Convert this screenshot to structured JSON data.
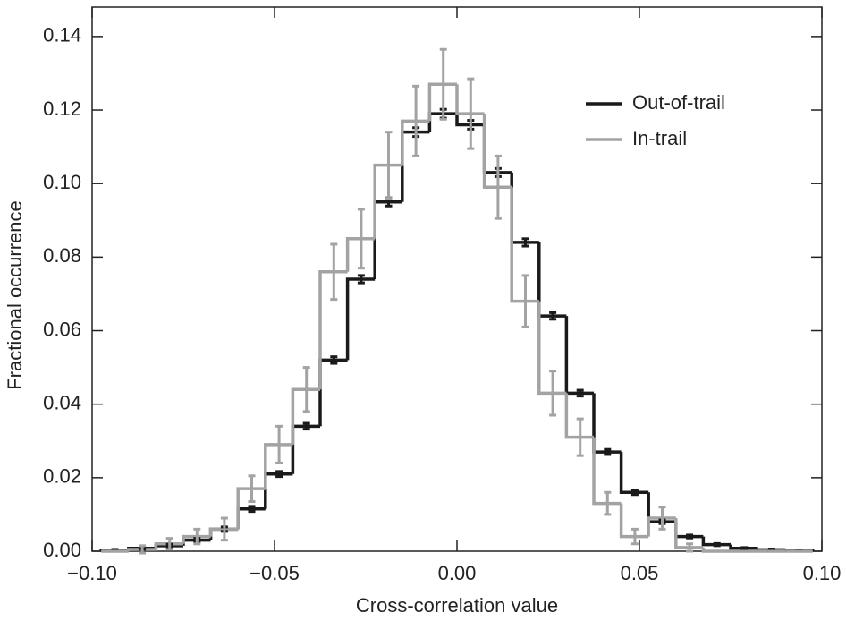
{
  "chart_data": {
    "type": "histogram-step",
    "x_label": "Cross-correlation value",
    "y_label": "Fractional occurrence",
    "bins": [
      -0.0975,
      -0.09,
      -0.0825,
      -0.075,
      -0.0675,
      -0.06,
      -0.0525,
      -0.045,
      -0.0375,
      -0.03,
      -0.0225,
      -0.015,
      -0.0075,
      0,
      0.0075,
      0.015,
      0.0225,
      0.03,
      0.0375,
      0.045,
      0.0525,
      0.06,
      0.0675,
      0.075,
      0.0825,
      0.09,
      0.0975
    ],
    "series": [
      {
        "name": "Out-of-trail",
        "color": "#1a1a1a",
        "values": [
          0.0003,
          0.0008,
          0.0015,
          0.003,
          0.006,
          0.0115,
          0.021,
          0.034,
          0.052,
          0.074,
          0.095,
          0.114,
          0.119,
          0.116,
          0.103,
          0.084,
          0.064,
          0.043,
          0.027,
          0.016,
          0.008,
          0.004,
          0.0018,
          0.0008,
          0.0004,
          0.0002
        ],
        "errors": [
          0.0002,
          0.0003,
          0.0004,
          0.0005,
          0.0006,
          0.0007,
          0.0007,
          0.0008,
          0.0009,
          0.001,
          0.0011,
          0.0012,
          0.0012,
          0.0012,
          0.0011,
          0.001,
          0.0009,
          0.0008,
          0.0007,
          0.0006,
          0.0005,
          0.0004,
          0.0003,
          0.0002,
          0.0002,
          0.0001
        ]
      },
      {
        "name": "In-trail",
        "color": "#a3a3a3",
        "values": [
          0,
          0.0005,
          0.002,
          0.004,
          0.006,
          0.017,
          0.029,
          0.044,
          0.076,
          0.085,
          0.105,
          0.117,
          0.127,
          0.119,
          0.099,
          0.068,
          0.043,
          0.031,
          0.013,
          0.004,
          0.009,
          0.001,
          0,
          0,
          0,
          0
        ],
        "errors": [
          0,
          0.001,
          0.0015,
          0.002,
          0.003,
          0.0035,
          0.005,
          0.006,
          0.0075,
          0.008,
          0.009,
          0.0095,
          0.0095,
          0.0095,
          0.0085,
          0.007,
          0.006,
          0.005,
          0.003,
          0.002,
          0.003,
          0.001,
          0,
          0,
          0,
          0
        ]
      }
    ],
    "xlim": [
      -0.1,
      0.1
    ],
    "ylim": [
      0,
      0.148
    ],
    "xticks": [
      {
        "value": -0.1,
        "label": "−0.10"
      },
      {
        "value": -0.05,
        "label": "−0.05"
      },
      {
        "value": 0,
        "label": "0.00"
      },
      {
        "value": 0.05,
        "label": "0.05"
      },
      {
        "value": 0.1,
        "label": "0.10"
      }
    ],
    "yticks": [
      {
        "value": 0,
        "label": "0.00"
      },
      {
        "value": 0.02,
        "label": "0.02"
      },
      {
        "value": 0.04,
        "label": "0.04"
      },
      {
        "value": 0.06,
        "label": "0.06"
      },
      {
        "value": 0.08,
        "label": "0.08"
      },
      {
        "value": 0.1,
        "label": "0.10"
      },
      {
        "value": 0.12,
        "label": "0.12"
      },
      {
        "value": 0.14,
        "label": "0.14"
      }
    ],
    "legend": "upper right"
  }
}
